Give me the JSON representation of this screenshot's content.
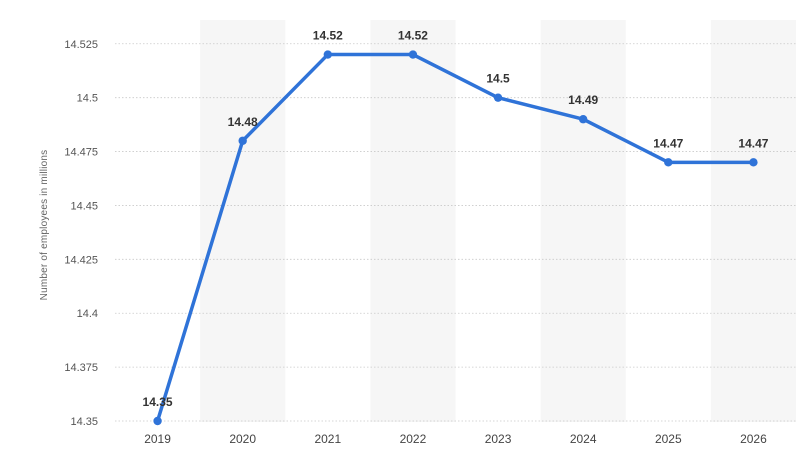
{
  "chart_data": {
    "type": "line",
    "title": "",
    "xlabel": "",
    "ylabel": "Number of employees in millions",
    "x": [
      "2019",
      "2020",
      "2021",
      "2022",
      "2023",
      "2024",
      "2025",
      "2026"
    ],
    "series": [
      {
        "values": [
          14.35,
          14.48,
          14.52,
          14.52,
          14.5,
          14.49,
          14.47,
          14.47
        ],
        "data_labels": [
          "14.35",
          "14.48",
          "14.52",
          "14.52",
          "14.5",
          "14.49",
          "14.47",
          "14.47"
        ]
      }
    ],
    "yticks": [
      14.35,
      14.375,
      14.4,
      14.425,
      14.45,
      14.475,
      14.5,
      14.525
    ],
    "ytick_labels": [
      "14.35",
      "14.375",
      "14.4",
      "14.425",
      "14.45",
      "14.475",
      "14.5",
      "14.525"
    ],
    "ylim": [
      14.35,
      14.53
    ],
    "grid": true,
    "legend": "none",
    "colors": {
      "line": "#2f73d8",
      "band": "#f6f6f6",
      "grid": "#c9c9c9"
    }
  }
}
